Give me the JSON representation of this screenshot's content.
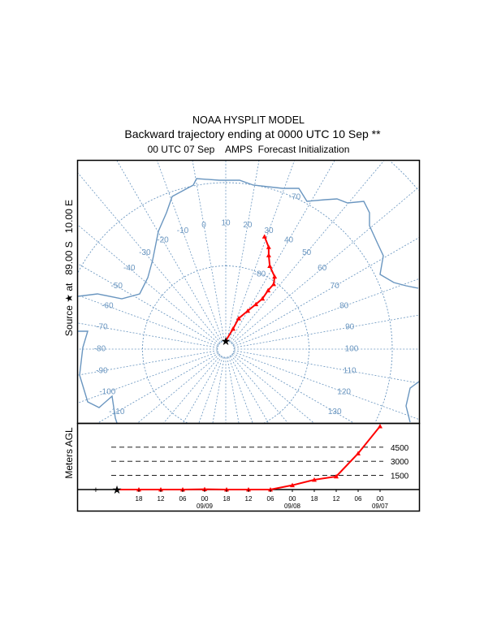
{
  "title": {
    "line1": "NOAA HYSPLIT MODEL",
    "line2": "Backward trajectory ending at 0000 UTC 10 Sep **",
    "line3": "00 UTC 07 Sep    AMPS  Forecast Initialization"
  },
  "source_label": "Source ★ at   89.00 S   10.00 E",
  "colors": {
    "map_lines": "#6a96c0",
    "trajectory": "#ff0000",
    "frame": "#000000"
  },
  "map": {
    "projection": "polar stereographic (south pole)",
    "center_lon": 10,
    "source": {
      "lat": -89.0,
      "lon": 10.0
    },
    "latitude_labels": [
      "-80",
      "-70"
    ],
    "longitude_labels": [
      {
        "lon": -110,
        "text": "-110"
      },
      {
        "lon": -100,
        "text": "-100"
      },
      {
        "lon": -90,
        "text": "-90"
      },
      {
        "lon": -80,
        "text": "-80"
      },
      {
        "lon": -70,
        "text": "-70"
      },
      {
        "lon": -60,
        "text": "-60"
      },
      {
        "lon": -50,
        "text": "-50"
      },
      {
        "lon": -40,
        "text": "-40"
      },
      {
        "lon": -30,
        "text": "-30"
      },
      {
        "lon": -20,
        "text": "-20"
      },
      {
        "lon": -10,
        "text": "-10"
      },
      {
        "lon": 0,
        "text": "0"
      },
      {
        "lon": 10,
        "text": "10"
      },
      {
        "lon": 20,
        "text": "20"
      },
      {
        "lon": 30,
        "text": "30"
      },
      {
        "lon": 40,
        "text": "40"
      },
      {
        "lon": 50,
        "text": "50"
      },
      {
        "lon": 60,
        "text": "60"
      },
      {
        "lon": 70,
        "text": "70"
      },
      {
        "lon": 80,
        "text": "80"
      },
      {
        "lon": 90,
        "text": "90"
      },
      {
        "lon": 100,
        "text": "100"
      },
      {
        "lon": 110,
        "text": "110"
      },
      {
        "lon": 120,
        "text": "120"
      },
      {
        "lon": 130,
        "text": "130"
      }
    ]
  },
  "chart_data": {
    "type": "line",
    "trajectory": [
      {
        "time": "10/00",
        "lat": -89.0,
        "lon": 10.0,
        "height_m": 0
      },
      {
        "time": "09/18",
        "lat": -87.4,
        "lon": 29.8,
        "height_m": 0
      },
      {
        "time": "09/12",
        "lat": -86.0,
        "lon": 32.8,
        "height_m": 0
      },
      {
        "time": "09/06",
        "lat": -84.7,
        "lon": 39.9,
        "height_m": 0
      },
      {
        "time": "09/00",
        "lat": -83.5,
        "lon": 43.9,
        "height_m": 30
      },
      {
        "time": "08/18",
        "lat": -82.5,
        "lon": 46.0,
        "height_m": 0
      },
      {
        "time": "08/12",
        "lat": -81.3,
        "lon": 45.8,
        "height_m": 0
      },
      {
        "time": "08/06",
        "lat": -80.3,
        "lon": 46.4,
        "height_m": 0
      },
      {
        "time": "08/00",
        "lat": -79.5,
        "lon": 44.0,
        "height_m": 460
      },
      {
        "time": "07/18",
        "lat": -78.7,
        "lon": 37.9,
        "height_m": 1040
      },
      {
        "time": "07/12",
        "lat": -77.6,
        "lon": 34.6,
        "height_m": 1390
      },
      {
        "time": "07/06",
        "lat": -76.7,
        "lon": 32.8,
        "height_m": 3840
      },
      {
        "time": "07/00",
        "lat": -75.7,
        "lon": 29.0,
        "height_m": 6720
      }
    ],
    "height_panel": {
      "ylabel": "Meters AGL",
      "reference_lines": [
        "4500",
        "3000",
        "1500"
      ],
      "x_ticks": [
        "18",
        "12",
        "06",
        "00",
        "18",
        "12",
        "06",
        "00",
        "18",
        "12",
        "06",
        "00"
      ],
      "date_labels": [
        "09/09",
        "09/08",
        "09/07"
      ]
    }
  }
}
